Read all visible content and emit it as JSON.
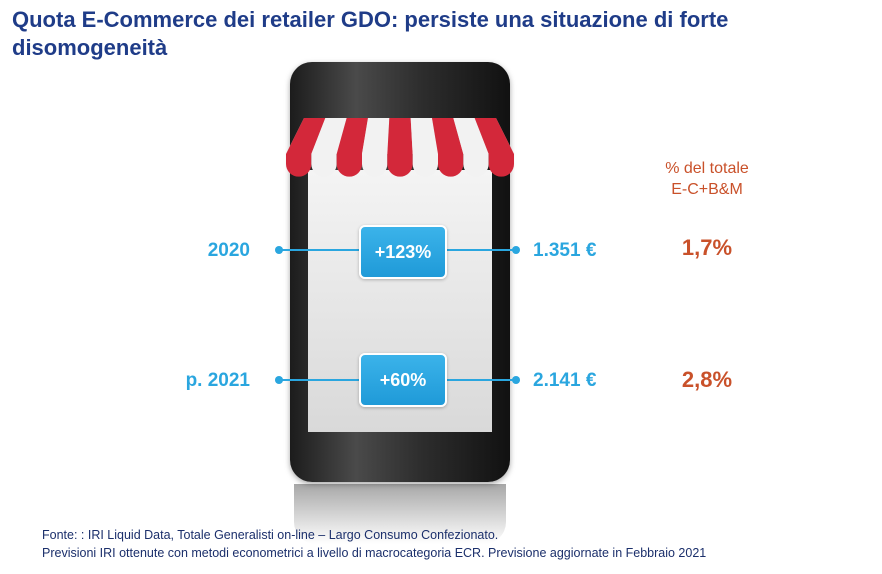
{
  "title": "Quota E-Commerce dei retailer GDO: persiste una situazione di forte disomogeneità",
  "share_header": {
    "line1": "% del totale",
    "line2": "E-C+B&M"
  },
  "rows": [
    {
      "year": "2020",
      "growth": "+123%",
      "value": "1.351 €",
      "share": "1,7%"
    },
    {
      "year": "p. 2021",
      "growth": "+60%",
      "value": "2.141 €",
      "share": "2,8%"
    }
  ],
  "footnote": {
    "line1": "Fonte: : IRI  Liquid Data, Totale Generalisti on-line – Largo Consumo Confezionato.",
    "line2": "Previsioni IRI ottenute con metodi econometrici a livello di macrocategoria ECR. Previsione aggiornate in Febbraio 2021"
  },
  "colors": {
    "title": "#1f3c88",
    "accent_blue": "#2aa6df",
    "share_red": "#c9512a",
    "awning_red": "#d3283a",
    "awning_white": "#f2f2f2"
  },
  "icons": [
    "smartphone-icon",
    "shop-awning-icon"
  ]
}
